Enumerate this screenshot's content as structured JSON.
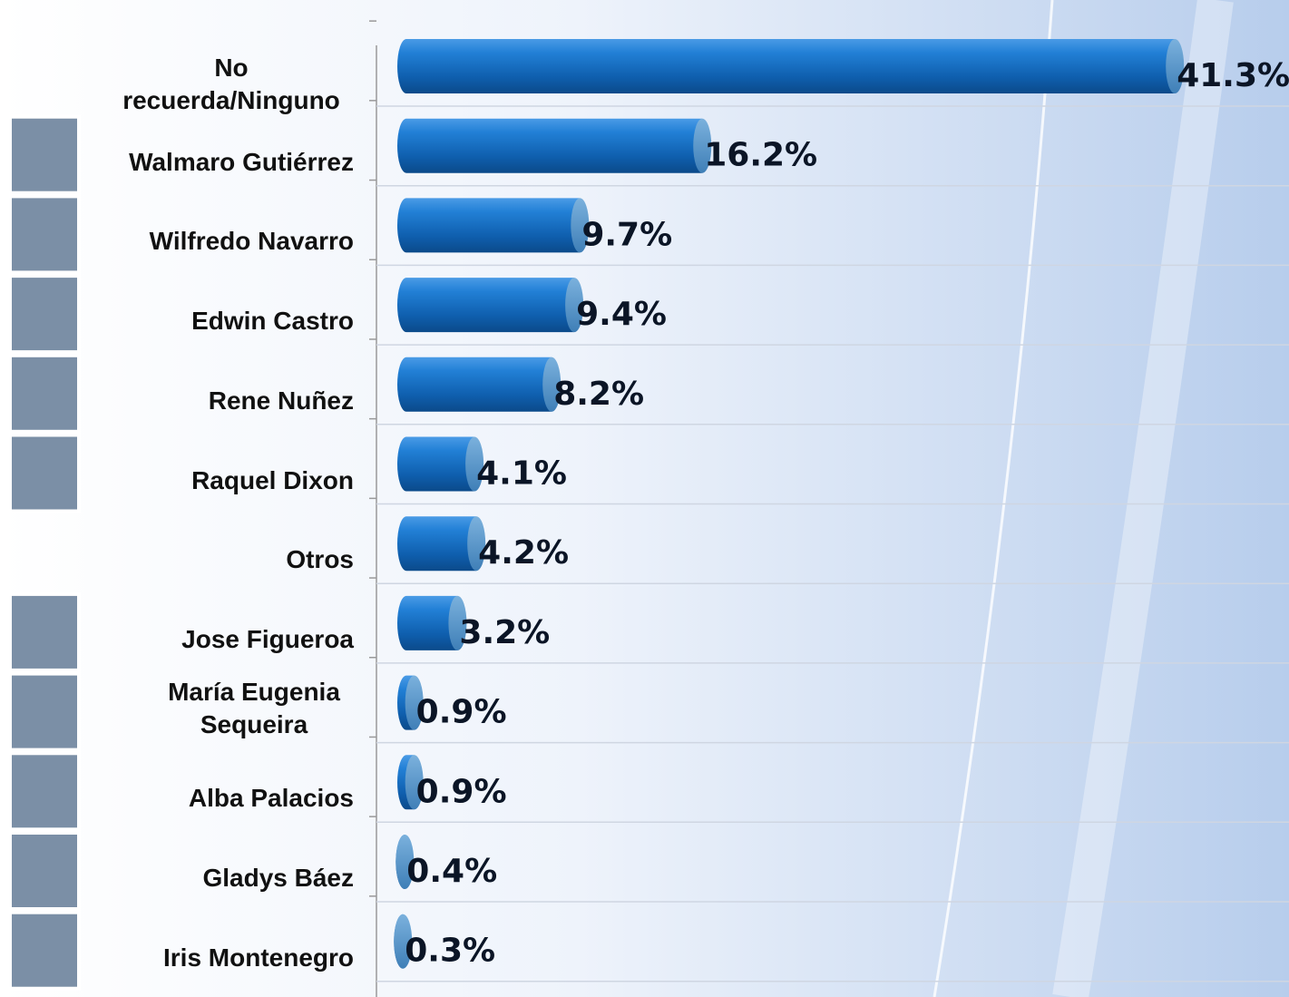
{
  "chart_data": {
    "type": "bar",
    "orientation": "horizontal",
    "categories": [
      "No recuerda/Ninguno",
      "Walmaro Gutiérrez",
      "Wilfredo Navarro",
      "Edwin Castro",
      "Rene Nuñez",
      "Raquel Dixon",
      "Otros",
      "Jose Figueroa",
      "María Eugenia Sequeira",
      "Alba Palacios",
      "Gladys Báez",
      "Iris Montenegro"
    ],
    "values": [
      41.3,
      16.2,
      9.7,
      9.4,
      8.2,
      4.1,
      4.2,
      3.2,
      0.9,
      0.9,
      0.4,
      0.3
    ],
    "value_labels": [
      "41.3%",
      "16.2%",
      "9.7%",
      "9.4%",
      "8.2%",
      "4.1%",
      "4.2%",
      "3.2%",
      "0.9%",
      "0.9%",
      "0.4%",
      "0.3%"
    ],
    "color": "#1f6fc0",
    "xlim": [
      0,
      45
    ],
    "grid": true
  }
}
